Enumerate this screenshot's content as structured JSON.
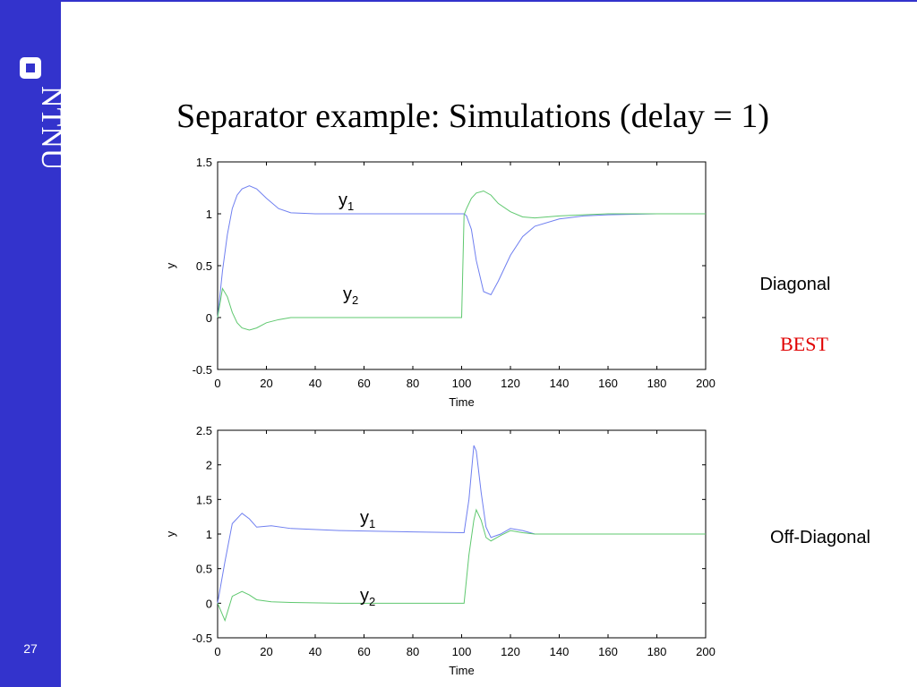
{
  "slide": {
    "title": "Separator example: Simulations (delay = 1)",
    "logo": "NTNU",
    "page": "27",
    "side_labels": [
      "Diagonal",
      "BEST",
      "Off-Diagonal"
    ]
  },
  "chart_data": [
    {
      "type": "line",
      "xlabel": "Time",
      "ylabel": "y",
      "x": [
        0,
        2,
        4,
        6,
        8,
        10,
        13,
        16,
        20,
        25,
        30,
        40,
        60,
        80,
        100,
        101,
        102,
        104,
        106,
        109,
        112,
        115,
        120,
        125,
        130,
        140,
        150,
        160,
        180,
        200
      ],
      "series": [
        {
          "name": "y1",
          "color": "#6f7ff0",
          "values": [
            0,
            0.45,
            0.8,
            1.05,
            1.18,
            1.24,
            1.27,
            1.24,
            1.15,
            1.05,
            1.01,
            1.0,
            1.0,
            1.0,
            1.0,
            1.0,
            0.98,
            0.85,
            0.55,
            0.25,
            0.22,
            0.35,
            0.6,
            0.78,
            0.88,
            0.95,
            0.98,
            0.99,
            1.0,
            1.0
          ]
        },
        {
          "name": "y2",
          "color": "#5fc86f",
          "values": [
            0,
            0.28,
            0.2,
            0.05,
            -0.05,
            -0.1,
            -0.12,
            -0.1,
            -0.05,
            -0.02,
            0,
            0,
            0,
            0,
            0,
            0.99,
            1.05,
            1.15,
            1.2,
            1.22,
            1.18,
            1.1,
            1.02,
            0.97,
            0.96,
            0.98,
            0.99,
            1.0,
            1.0,
            1.0
          ]
        }
      ],
      "annotations": [
        {
          "text": "y",
          "sub": "1"
        },
        {
          "text": "y",
          "sub": "2"
        }
      ],
      "xlim": [
        0,
        200
      ],
      "xticks": [
        0,
        20,
        40,
        60,
        80,
        100,
        120,
        140,
        160,
        180,
        200
      ],
      "ylim": [
        -0.5,
        1.5
      ],
      "yticks": [
        -0.5,
        0,
        0.5,
        1,
        1.5
      ]
    },
    {
      "type": "line",
      "xlabel": "Time",
      "ylabel": "y",
      "x": [
        0,
        3,
        6,
        10,
        13,
        16,
        22,
        30,
        50,
        80,
        100,
        101,
        103,
        105,
        106,
        108,
        110,
        112,
        116,
        120,
        125,
        130,
        150,
        200
      ],
      "series": [
        {
          "name": "y1",
          "color": "#6f7ff0",
          "values": [
            0,
            0.6,
            1.15,
            1.3,
            1.22,
            1.1,
            1.12,
            1.08,
            1.05,
            1.03,
            1.02,
            1.02,
            1.5,
            2.28,
            2.2,
            1.6,
            1.1,
            0.95,
            1.0,
            1.08,
            1.05,
            1.0,
            1.0,
            1.0
          ]
        },
        {
          "name": "y2",
          "color": "#5fc86f",
          "values": [
            0,
            -0.25,
            0.1,
            0.17,
            0.12,
            0.05,
            0.02,
            0.01,
            0,
            0,
            0,
            0,
            0.7,
            1.2,
            1.35,
            1.2,
            0.95,
            0.9,
            0.98,
            1.05,
            1.02,
            1.0,
            1.0,
            1.0
          ]
        }
      ],
      "annotations": [
        {
          "text": "y",
          "sub": "1"
        },
        {
          "text": "y",
          "sub": "2"
        }
      ],
      "xlim": [
        0,
        200
      ],
      "xticks": [
        0,
        20,
        40,
        60,
        80,
        100,
        120,
        140,
        160,
        180,
        200
      ],
      "ylim": [
        -0.5,
        2.5
      ],
      "yticks": [
        -0.5,
        0,
        0.5,
        1,
        1.5,
        2,
        2.5
      ]
    }
  ]
}
